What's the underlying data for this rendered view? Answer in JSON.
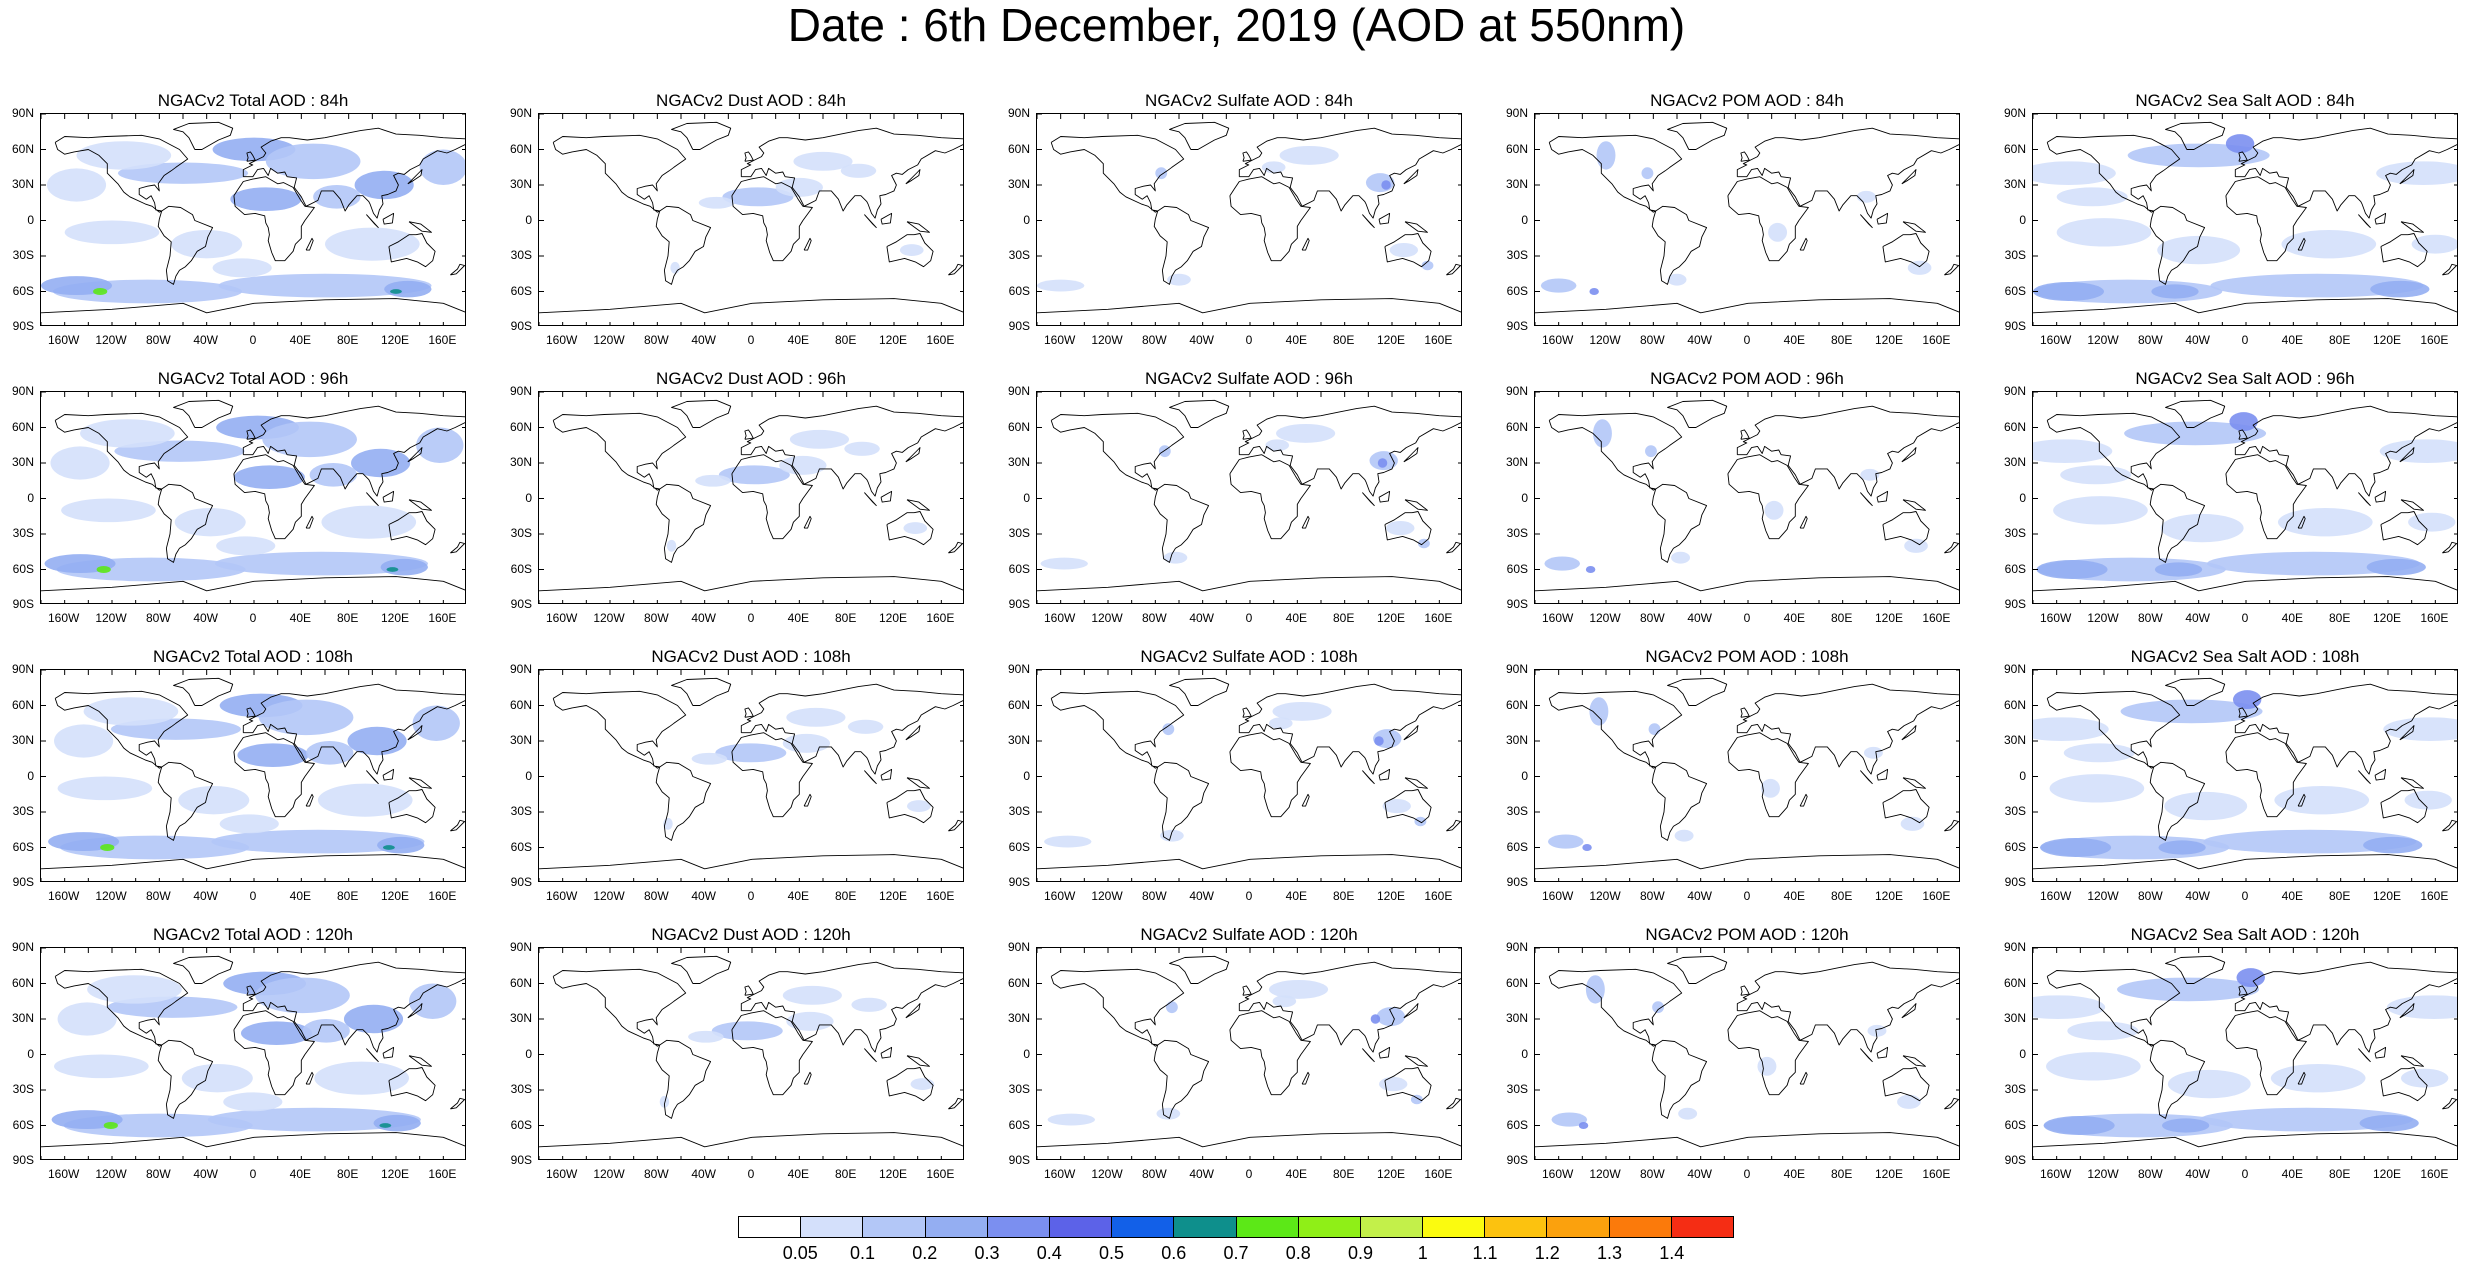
{
  "title": "Date : 6th December, 2019 (AOD at 550nm)",
  "lat_labels": [
    "90N",
    "60N",
    "30N",
    "0",
    "30S",
    "60S",
    "90S"
  ],
  "lon_labels": [
    "160W",
    "120W",
    "80W",
    "40W",
    "0",
    "40E",
    "80E",
    "120E",
    "160E"
  ],
  "forecast_hours": [
    "84h",
    "96h",
    "108h",
    "120h"
  ],
  "species": [
    "Total",
    "Dust",
    "Sulfate",
    "POM",
    "Sea Salt"
  ],
  "panels": [
    [
      "NGACv2 Total AOD : 84h",
      "NGACv2 Dust AOD : 84h",
      "NGACv2 Sulfate AOD : 84h",
      "NGACv2 POM AOD : 84h",
      "NGACv2 Sea Salt AOD : 84h"
    ],
    [
      "NGACv2 Total AOD : 96h",
      "NGACv2 Dust AOD : 96h",
      "NGACv2 Sulfate AOD : 96h",
      "NGACv2 POM AOD : 96h",
      "NGACv2 Sea Salt AOD : 96h"
    ],
    [
      "NGACv2 Total AOD : 108h",
      "NGACv2 Dust AOD : 108h",
      "NGACv2 Sulfate AOD : 108h",
      "NGACv2 POM AOD : 108h",
      "NGACv2 Sea Salt AOD : 108h"
    ],
    [
      "NGACv2 Total AOD : 120h",
      "NGACv2 Dust AOD : 120h",
      "NGACv2 Sulfate AOD : 120h",
      "NGACv2 POM AOD : 120h",
      "NGACv2 Sea Salt  AOD : 120h"
    ]
  ],
  "colorbar": {
    "labels": [
      "0.05",
      "0.1",
      "0.2",
      "0.3",
      "0.4",
      "0.5",
      "0.6",
      "0.7",
      "0.8",
      "0.9",
      "1",
      "1.1",
      "1.2",
      "1.3",
      "1.4"
    ],
    "colors": [
      "#ffffff",
      "#d4e0fb",
      "#b3c7f7",
      "#94aef2",
      "#7b8ff0",
      "#5c62e8",
      "#1260e8",
      "#0e8f8c",
      "#5ce817",
      "#8fef17",
      "#c3f04a",
      "#fbfb0f",
      "#fcc20f",
      "#fba10d",
      "#fb7a0b",
      "#f52d14"
    ]
  }
}
